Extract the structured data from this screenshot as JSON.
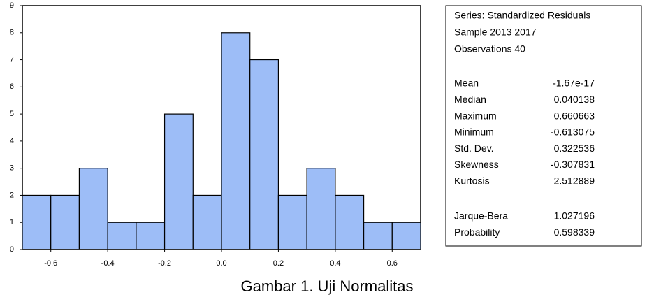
{
  "chart_data": {
    "type": "histogram",
    "bins": [
      -0.7,
      -0.6,
      -0.5,
      -0.4,
      -0.3,
      -0.2,
      -0.1,
      0.0,
      0.1,
      0.2,
      0.3,
      0.4,
      0.5,
      0.6,
      0.7
    ],
    "values": [
      2,
      2,
      3,
      1,
      1,
      5,
      2,
      8,
      7,
      2,
      3,
      2,
      1,
      1
    ],
    "color": "#9dbdf7",
    "xlim": [
      -0.7,
      0.7
    ],
    "xticks": [
      -0.6,
      -0.4,
      -0.2,
      {
        "value": 0,
        "label": "0.0"
      },
      0.2,
      0.4,
      0.6
    ],
    "ylim": [
      0,
      9
    ],
    "yticks": [
      0,
      1,
      2,
      3,
      4,
      5,
      6,
      7,
      8,
      9
    ],
    "stats_header": [
      "Series: Standardized Residuals",
      "Sample 2013 2017",
      "Observations 40"
    ],
    "stats": [
      [
        "Mean",
        "-1.67e-17"
      ],
      [
        "Median",
        "0.040138"
      ],
      [
        "Maximum",
        "0.660663"
      ],
      [
        "Minimum",
        "-0.613075"
      ],
      [
        "Std. Dev.",
        "0.322536"
      ],
      [
        "Skewness",
        "-0.307831"
      ],
      [
        "Kurtosis",
        "2.512889"
      ]
    ],
    "tests": [
      [
        "Jarque-Bera",
        "1.027196"
      ],
      [
        "Probability",
        "0.598339"
      ]
    ],
    "caption": "Gambar 1. Uji Normalitas"
  }
}
